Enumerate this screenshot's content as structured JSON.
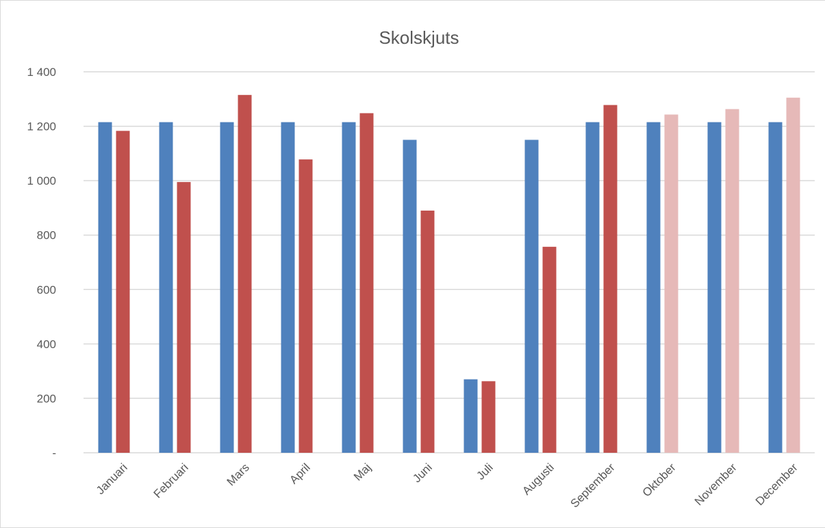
{
  "chart_data": {
    "type": "bar",
    "title": "Skolskjuts",
    "xlabel": "",
    "ylabel": "",
    "categories": [
      "Januari",
      "Februari",
      "Mars",
      "April",
      "Maj",
      "Juni",
      "Juli",
      "Augusti",
      "September",
      "Oktober",
      "November",
      "December"
    ],
    "series": [
      {
        "values": [
          1215,
          1215,
          1215,
          1215,
          1215,
          1150,
          270,
          1150,
          1215,
          1215,
          1215,
          1215
        ],
        "color": "#4f81bd"
      },
      {
        "values": [
          1183,
          995,
          1315,
          1078,
          1248,
          890,
          263,
          757,
          1278,
          1243,
          1263,
          1305
        ],
        "color": "#c0504d",
        "forecast_from_index": 9,
        "forecast_color": "#e6b9b8"
      }
    ],
    "ylim": [
      0,
      1400
    ],
    "yticks": [
      {
        "value": 0,
        "label": "-"
      },
      {
        "value": 200,
        "label": "200"
      },
      {
        "value": 400,
        "label": "400"
      },
      {
        "value": 600,
        "label": "600"
      },
      {
        "value": 800,
        "label": "800"
      },
      {
        "value": 1000,
        "label": "1 000"
      },
      {
        "value": 1200,
        "label": "1 200"
      },
      {
        "value": 1400,
        "label": "1 400"
      }
    ],
    "grid": true,
    "legend": "none",
    "colors": {
      "grid": "#d9d9d9",
      "text": "#595959"
    }
  }
}
